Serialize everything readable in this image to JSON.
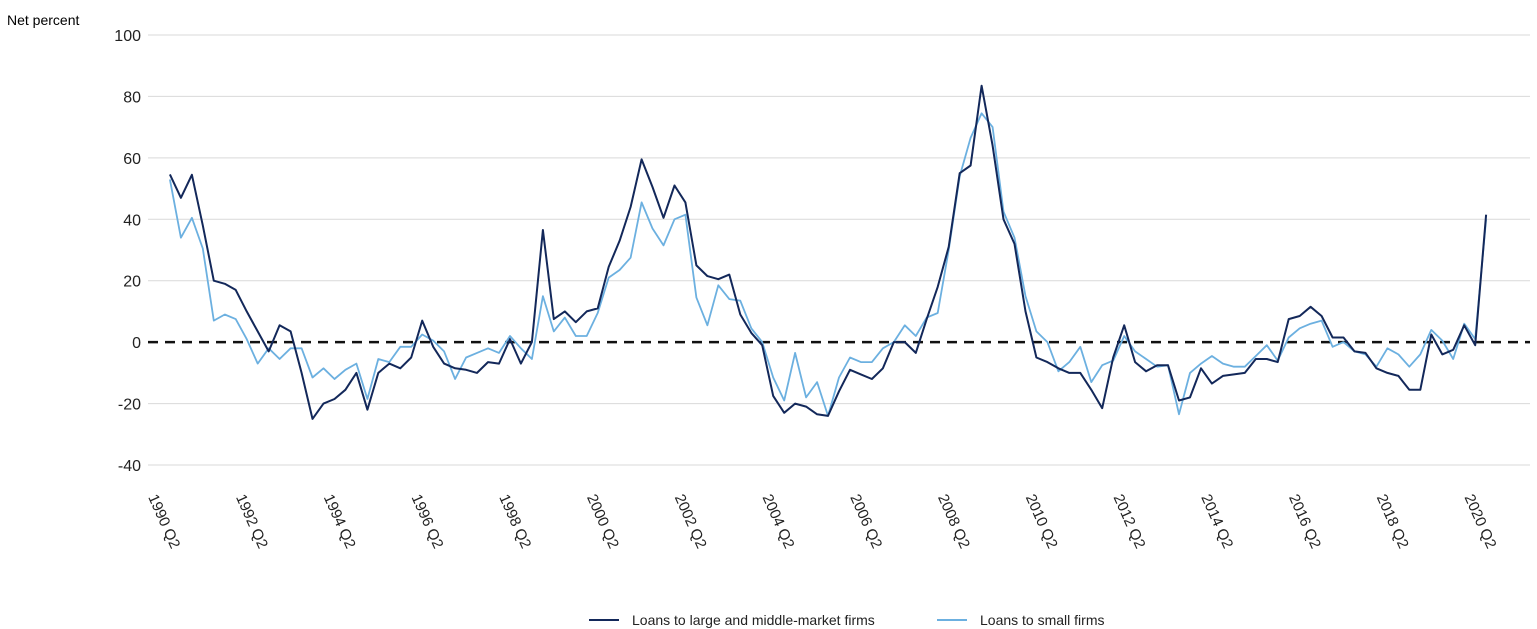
{
  "chart_data": {
    "type": "line",
    "title": "",
    "ylabel": "Net percent",
    "xlabel": "",
    "ylim": [
      -40,
      100
    ],
    "yticks": [
      100,
      80,
      60,
      40,
      20,
      0,
      -20,
      -40
    ],
    "xlim": [
      1990.25,
      2021.75
    ],
    "xtick_labels": [
      "1990 Q2",
      "1992 Q2",
      "1994 Q2",
      "1996 Q2",
      "1998 Q2",
      "2000 Q2",
      "2002 Q2",
      "2004 Q2",
      "2006 Q2",
      "2008 Q2",
      "2010 Q2",
      "2012 Q2",
      "2014 Q2",
      "2016 Q2",
      "2018 Q2",
      "2020 Q2"
    ],
    "grid": true,
    "zero_line": "dashed",
    "legend_position": "bottom-center",
    "colors": {
      "large": "#13285a",
      "small": "#6cb0e0",
      "zero_line": "#111111",
      "grid": "#d9d9d9"
    },
    "start_quarter": "1990 Q4",
    "series": [
      {
        "name": "Loans to large and middle-market firms",
        "values": [
          54.6,
          47,
          54.5,
          38,
          20,
          19,
          17,
          10,
          3.5,
          -3,
          5.5,
          3.5,
          -10,
          -25,
          -20,
          -18.5,
          -15.5,
          -10,
          -22,
          -10,
          -7,
          -8.5,
          -5,
          7,
          -1.5,
          -7,
          -8.5,
          -9,
          -10,
          -6.5,
          -7,
          1,
          -7,
          0,
          36.5,
          7.5,
          10,
          6.5,
          10,
          11,
          24.5,
          33,
          44,
          59.5,
          50.5,
          40.5,
          51,
          45.5,
          25,
          21.5,
          20.5,
          22,
          9,
          3,
          -1,
          -17.5,
          -23,
          -20,
          -21,
          -23.5,
          -24,
          -16,
          -9,
          -10.5,
          -12,
          -8.5,
          0,
          0,
          -3.5,
          7.5,
          18,
          31,
          55,
          57.5,
          83.5,
          64,
          40,
          32,
          10,
          -5,
          -6.5,
          -8.5,
          -10,
          -10,
          -15.5,
          -21.5,
          -5,
          5.5,
          -6.5,
          -9.5,
          -7.5,
          -7.5,
          -19,
          -18,
          -8.5,
          -13.5,
          -11,
          -10.5,
          -10,
          -5.5,
          -5.5,
          -6.5,
          7.5,
          8.5,
          11.5,
          8.5,
          1.5,
          1.5,
          -3,
          -3.5,
          -8.5,
          -10,
          -11,
          -15.5,
          -15.5,
          2.5,
          -4,
          -2.5,
          5.5,
          -1,
          41.5
        ]
      },
      {
        "name": "Loans to small firms",
        "values": [
          53,
          34,
          40.5,
          30.5,
          7,
          9,
          7.5,
          1,
          -7,
          -2,
          -5.5,
          -2,
          -2,
          -11.5,
          -8.5,
          -12,
          -9,
          -7,
          -18.5,
          -5.5,
          -6.5,
          -1.5,
          -1.5,
          2.5,
          0.5,
          -3,
          -12,
          -5,
          -3.5,
          -2,
          -3.5,
          2,
          -2,
          -5.5,
          15,
          3.5,
          8,
          2,
          2,
          9.5,
          21,
          23.5,
          27.5,
          45.5,
          37,
          31.5,
          40,
          41.5,
          14.5,
          5.5,
          18.5,
          14,
          13.5,
          4.5,
          0,
          -11.5,
          -19,
          -3.5,
          -18,
          -13,
          -24,
          -11.5,
          -5,
          -6.5,
          -6.5,
          -2,
          0,
          5.5,
          2,
          8,
          9.5,
          30,
          54,
          66.5,
          74.5,
          70,
          42.5,
          34,
          15,
          3.5,
          0,
          -9.5,
          -6.5,
          -1.5,
          -13,
          -7.5,
          -6,
          2,
          -3,
          -5.5,
          -8,
          -7.5,
          -23.5,
          -10,
          -7,
          -4.5,
          -7,
          -8,
          -8,
          -4.5,
          -1,
          -6,
          1.5,
          4.5,
          6,
          7,
          -1.5,
          0,
          -3,
          -4,
          -8,
          -2,
          -4,
          -8,
          -4,
          4,
          0.5,
          -5.5,
          6,
          1,
          40
        ]
      }
    ]
  }
}
